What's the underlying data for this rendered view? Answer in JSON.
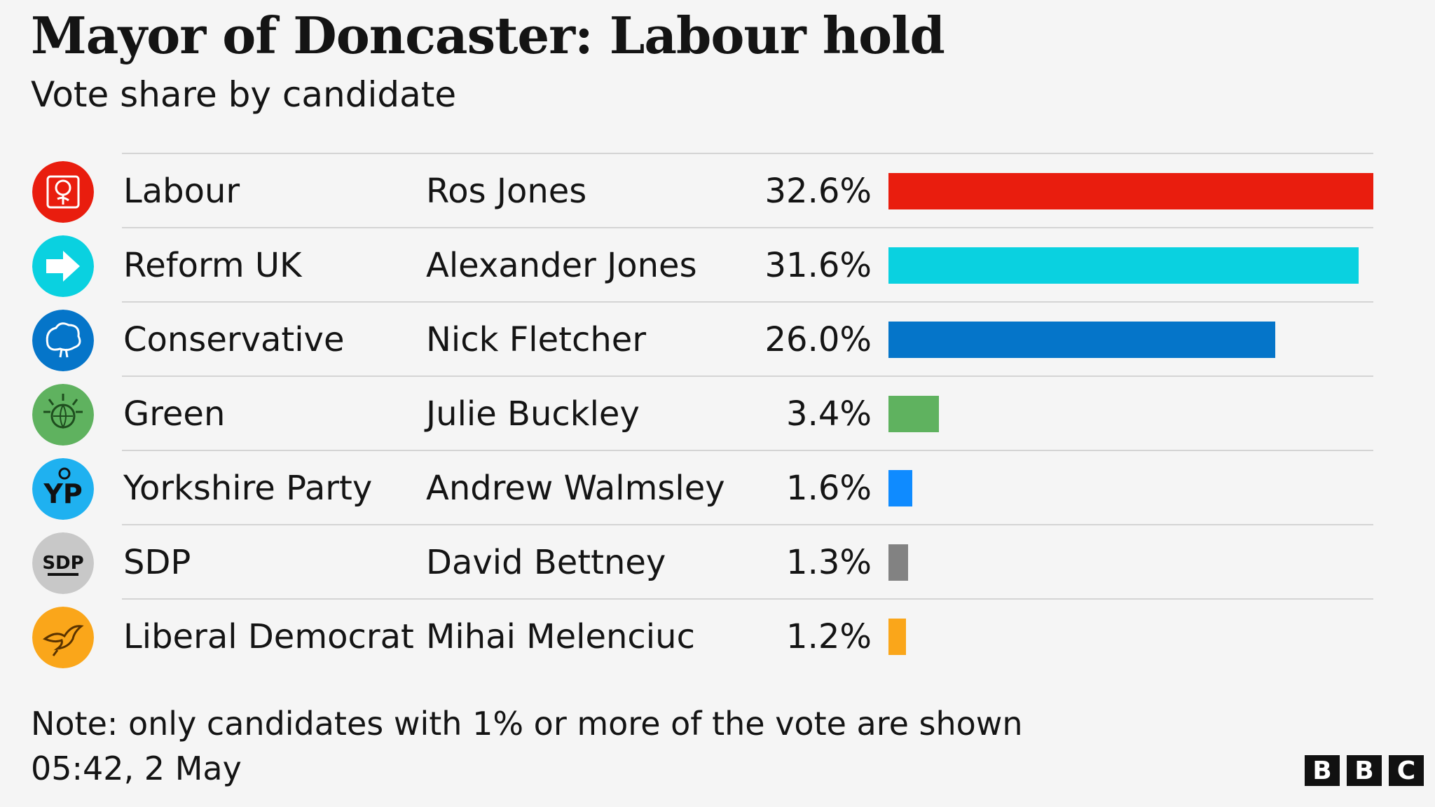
{
  "header": {
    "title": "Mayor of Doncaster: Labour hold",
    "subtitle": "Vote share by candidate"
  },
  "chart_data": {
    "type": "bar",
    "orientation": "horizontal",
    "title": "Mayor of Doncaster: Labour hold",
    "subtitle": "Vote share by candidate",
    "categories": [
      "Labour",
      "Reform UK",
      "Conservative",
      "Green",
      "Yorkshire Party",
      "SDP",
      "Liberal Democrat"
    ],
    "candidates": [
      "Ros Jones",
      "Alexander Jones",
      "Nick Fletcher",
      "Julie Buckley",
      "Andrew Walmsley",
      "David Bettney",
      "Mihai Melenciuc"
    ],
    "values": [
      32.6,
      31.6,
      26.0,
      3.4,
      1.6,
      1.3,
      1.2
    ],
    "value_labels": [
      "32.6%",
      "31.6%",
      "26.0%",
      "3.4%",
      "1.6%",
      "1.3%",
      "1.2%"
    ],
    "colors": [
      "#e91d0e",
      "#0ad1e0",
      "#0575c9",
      "#5fb25f",
      "#0f8bff",
      "#828282",
      "#faa61a"
    ],
    "logo_icons": [
      "labour-rose-icon",
      "reform-arrow-icon",
      "conservative-tree-icon",
      "green-globe-icon",
      "yorkshire-party-icon",
      "sdp-icon",
      "libdem-bird-icon"
    ],
    "xlim": [
      0,
      32.6
    ],
    "grid": false,
    "legend": "none"
  },
  "footer": {
    "note": "Note: only candidates with 1% or more of the vote are shown",
    "timestamp": "05:42,  2 May",
    "brand_letters": [
      "B",
      "B",
      "C"
    ]
  }
}
